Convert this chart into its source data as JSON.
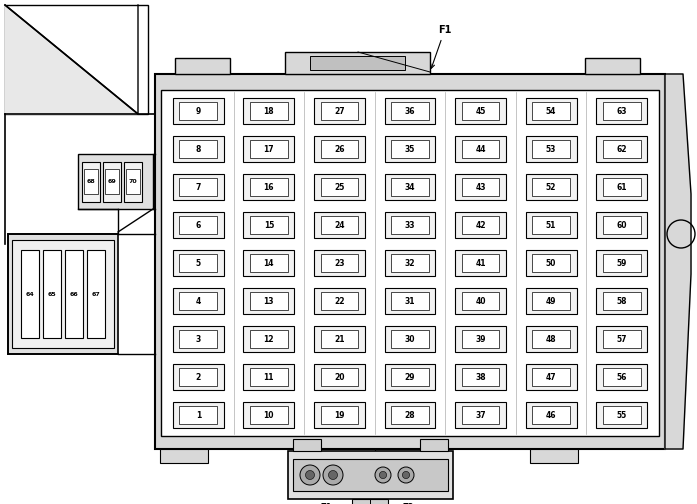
{
  "bg_color": "#ffffff",
  "line_color": "#000000",
  "columns": [
    {
      "fuses": [
        9,
        8,
        7,
        6,
        5,
        4,
        3,
        2,
        1
      ]
    },
    {
      "fuses": [
        18,
        17,
        16,
        15,
        14,
        13,
        12,
        11,
        10
      ]
    },
    {
      "fuses": [
        27,
        26,
        25,
        24,
        23,
        22,
        21,
        20,
        19
      ]
    },
    {
      "fuses": [
        36,
        35,
        34,
        33,
        32,
        31,
        30,
        29,
        28
      ]
    },
    {
      "fuses": [
        45,
        44,
        43,
        42,
        41,
        40,
        39,
        38,
        37
      ]
    },
    {
      "fuses": [
        54,
        53,
        52,
        51,
        50,
        49,
        48,
        47,
        46
      ]
    },
    {
      "fuses": [
        63,
        62,
        61,
        60,
        59,
        58,
        57,
        56,
        55
      ]
    }
  ],
  "small_fuses": [
    68,
    69,
    70
  ],
  "large_fuses": [
    64,
    65,
    66,
    67
  ],
  "F1_label": "F1"
}
